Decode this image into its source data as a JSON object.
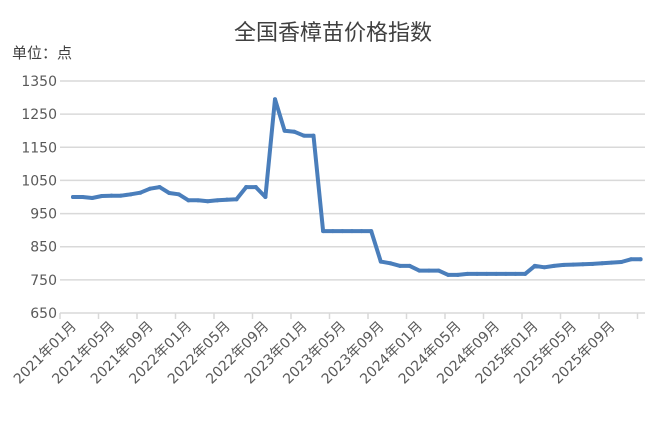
{
  "chart_data": {
    "type": "line",
    "title": "全国香樟苗价格指数",
    "ylabel": "单位：点",
    "xlabel": "",
    "ylim": [
      650,
      1350
    ],
    "yticks": [
      650,
      750,
      850,
      950,
      1050,
      1150,
      1250,
      1350
    ],
    "grid": true,
    "color": "#4a7ebb",
    "tick_labels": [
      "2021年01月",
      "2021年05月",
      "2021年09月",
      "2022年01月",
      "2022年05月",
      "2022年09月",
      "2023年01月",
      "2023年05月",
      "2023年09月",
      "2024年01月",
      "2024年05月",
      "2024年09月",
      "2025年01月",
      "2025年05月",
      "2025年09月"
    ],
    "series": [
      {
        "name": "全国香樟苗价格指数",
        "values": [
          1000,
          1000,
          997,
          1003,
          1004,
          1004,
          1008,
          1013,
          1025,
          1030,
          1012,
          1008,
          990,
          990,
          987,
          990,
          992,
          993,
          1030,
          1030,
          1000,
          1295,
          1200,
          1197,
          1185,
          1185,
          897,
          897,
          897,
          897,
          897,
          897,
          805,
          800,
          792,
          792,
          778,
          778,
          778,
          765,
          765,
          768,
          768,
          768,
          768,
          768,
          768,
          768,
          792,
          788,
          792,
          795,
          796,
          797,
          798,
          800,
          802,
          804,
          812,
          812
        ]
      }
    ]
  }
}
